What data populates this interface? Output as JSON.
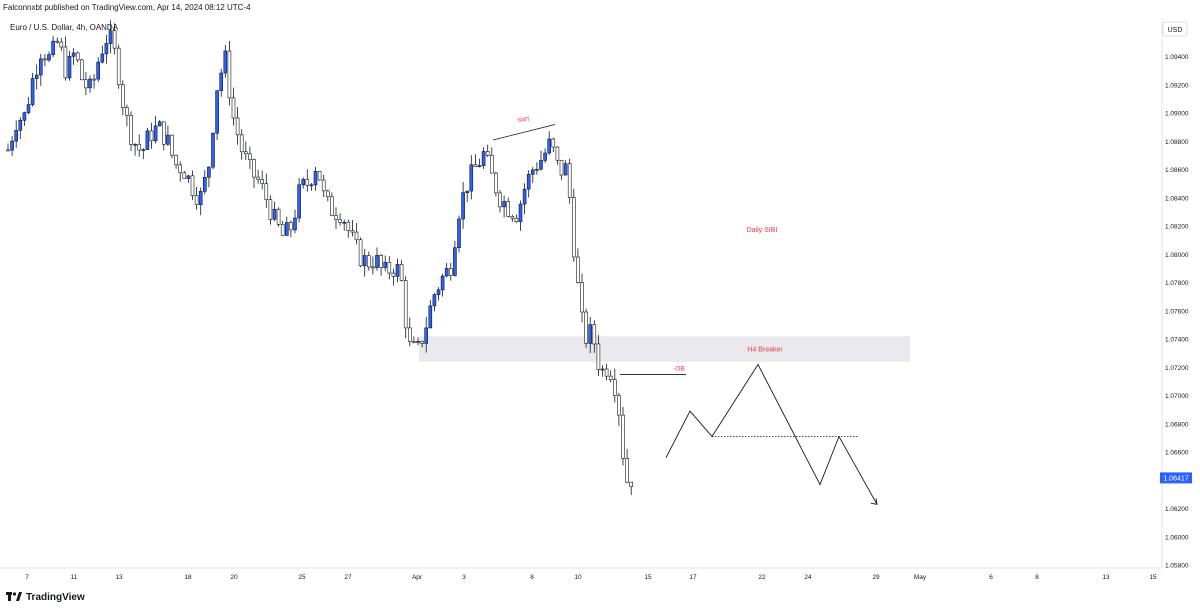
{
  "header": {
    "publisher_line": "Falconnxbt published on TradingView.com, Apr 14, 2024 08:12 UTC-4",
    "symbol_line": "Euro / U.S. Dollar, 4h, OANDA"
  },
  "currency_button": "USD",
  "footer": {
    "brand": "TradingView"
  },
  "colors": {
    "up_candle": "#2962ff",
    "down_candle": "#ffffff",
    "wick": "#131722",
    "annotation_red": "#f23645",
    "zone_fill": "#e9e9ee",
    "last_price_bg": "#2962ff"
  },
  "chart_data": {
    "type": "candlestick",
    "instrument": "Euro / U.S. Dollar",
    "timeframe": "4h",
    "y_ticks": [
      "1.09400",
      "1.09200",
      "1.09000",
      "1.08800",
      "1.08600",
      "1.08400",
      "1.08200",
      "1.08000",
      "1.07800",
      "1.07600",
      "1.07400",
      "1.07200",
      "1.07000",
      "1.06800",
      "1.06600",
      "1.06400",
      "1.06200",
      "1.06000",
      "1.05800"
    ],
    "ylim": [
      1.058,
      1.0966
    ],
    "last_price": "1.06417",
    "x_tick_labels": [
      "7",
      "11",
      "13",
      "18",
      "20",
      "25",
      "27",
      "Apr",
      "3",
      "8",
      "10",
      "15",
      "17",
      "22",
      "24",
      "29",
      "May",
      "6",
      "8",
      "13",
      "15"
    ],
    "annotations": {
      "smt": "SMT",
      "daily_sibi": "Daily SIBI",
      "h4_breaker": "H4 Breaker",
      "neg_ob": "-OB"
    },
    "h4_breaker_zone": [
      1.0724,
      1.0742
    ],
    "ob_level": 1.0715,
    "projection_dotted_level": 1.0671,
    "projected_path": [
      {
        "date": "Apr 16",
        "price": 1.0656
      },
      {
        "date": "Apr 17",
        "price": 1.0689
      },
      {
        "date": "Apr 18",
        "price": 1.0671
      },
      {
        "date": "Apr 22",
        "price": 1.0722
      },
      {
        "date": "Apr 25",
        "price": 1.0637
      },
      {
        "date": "Apr 26",
        "price": 1.0671
      },
      {
        "date": "Apr 29",
        "price": 1.0623
      }
    ],
    "price_path": [
      1.0874,
      1.0895,
      1.0898,
      1.0925,
      1.0946,
      1.0938,
      1.0951,
      1.0929,
      1.0943,
      1.0921,
      1.0916,
      1.0942,
      1.0956,
      1.0938,
      1.0899,
      1.0881,
      1.0872,
      1.0885,
      1.089,
      1.0882,
      1.0864,
      1.0861,
      1.0849,
      1.0839,
      1.086,
      1.0918,
      1.0939,
      1.0897,
      1.0874,
      1.0859,
      1.0852,
      1.0839,
      1.0823,
      1.0812,
      1.082,
      1.0846,
      1.0851,
      1.0865,
      1.0836,
      1.0831,
      1.083,
      1.0813,
      1.08,
      1.0794,
      1.0797,
      1.0786,
      1.0791,
      1.0788,
      1.0735,
      1.073,
      1.0748,
      1.0771,
      1.0783,
      1.0791,
      1.0831,
      1.085,
      1.0861,
      1.0871,
      1.0854,
      1.084,
      1.0833,
      1.0829,
      1.0849,
      1.0862,
      1.0868,
      1.0879,
      1.0859,
      1.0861,
      1.0791,
      1.074,
      1.0745,
      1.0716,
      1.0722,
      1.0702,
      1.064,
      1.0642
    ]
  }
}
